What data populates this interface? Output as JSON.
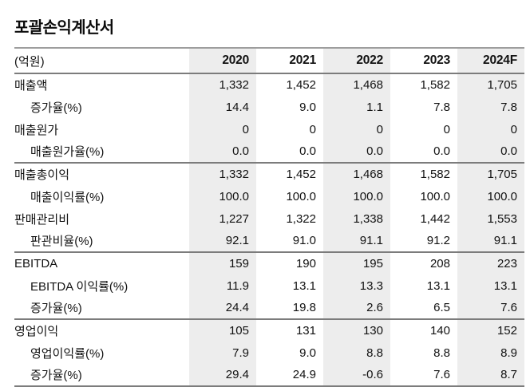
{
  "title": "포괄손익계산서",
  "table": {
    "unit_label": "(억원)",
    "years": [
      "2020",
      "2021",
      "2022",
      "2023",
      "2024F"
    ],
    "shaded_columns": [
      0,
      2,
      4
    ],
    "shade_color": "#ededed",
    "sections": [
      {
        "rows": [
          {
            "label": "매출액",
            "indent": false,
            "values": [
              "1,332",
              "1,452",
              "1,468",
              "1,582",
              "1,705"
            ]
          },
          {
            "label": "증가율(%)",
            "indent": true,
            "values": [
              "14.4",
              "9.0",
              "1.1",
              "7.8",
              "7.8"
            ]
          },
          {
            "label": "매출원가",
            "indent": false,
            "values": [
              "0",
              "0",
              "0",
              "0",
              "0"
            ]
          },
          {
            "label": "매출원가율(%)",
            "indent": true,
            "values": [
              "0.0",
              "0.0",
              "0.0",
              "0.0",
              "0.0"
            ]
          }
        ]
      },
      {
        "rows": [
          {
            "label": "매출총이익",
            "indent": false,
            "values": [
              "1,332",
              "1,452",
              "1,468",
              "1,582",
              "1,705"
            ]
          },
          {
            "label": "매출이익률(%)",
            "indent": true,
            "values": [
              "100.0",
              "100.0",
              "100.0",
              "100.0",
              "100.0"
            ]
          },
          {
            "label": "판매관리비",
            "indent": false,
            "values": [
              "1,227",
              "1,322",
              "1,338",
              "1,442",
              "1,553"
            ]
          },
          {
            "label": "판관비율(%)",
            "indent": true,
            "values": [
              "92.1",
              "91.0",
              "91.1",
              "91.2",
              "91.1"
            ]
          }
        ]
      },
      {
        "rows": [
          {
            "label": "EBITDA",
            "indent": false,
            "values": [
              "159",
              "190",
              "195",
              "208",
              "223"
            ]
          },
          {
            "label": "EBITDA 이익률(%)",
            "indent": true,
            "values": [
              "11.9",
              "13.1",
              "13.3",
              "13.1",
              "13.1"
            ]
          },
          {
            "label": "증가율(%)",
            "indent": true,
            "values": [
              "24.4",
              "19.8",
              "2.6",
              "6.5",
              "7.6"
            ]
          }
        ]
      },
      {
        "rows": [
          {
            "label": "영업이익",
            "indent": false,
            "values": [
              "105",
              "131",
              "130",
              "140",
              "152"
            ]
          },
          {
            "label": "영업이익률(%)",
            "indent": true,
            "values": [
              "7.9",
              "9.0",
              "8.8",
              "8.8",
              "8.9"
            ]
          },
          {
            "label": "증가율(%)",
            "indent": true,
            "values": [
              "29.4",
              "24.9",
              "-0.6",
              "7.6",
              "8.7"
            ]
          }
        ]
      }
    ]
  }
}
